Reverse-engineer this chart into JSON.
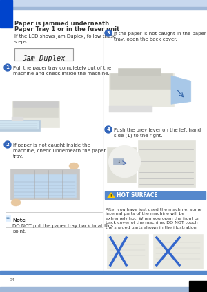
{
  "page_bg": "#ffffff",
  "header_bar_light": "#c8d8ee",
  "header_bar_dark": "#a0b8d8",
  "left_accent_color": "#0044cc",
  "title_line1": "Paper is jammed underneath",
  "title_line2": "Paper Tray 1 or in the fuser unit",
  "title_fontsize": 6.0,
  "intro_text": "If the LCD shows Jam Duplex, follow these\nsteps:",
  "intro_fontsize": 5.0,
  "lcd_text": "Jam Duplex",
  "lcd_fontsize": 7.5,
  "step1_num": "1",
  "step1_text": "Pull the paper tray completely out of the\nmachine and check inside the machine.",
  "step2_num": "2",
  "step2_text": "If paper is not caught inside the\nmachine, check underneath the paper\ntray.",
  "step3_num": "3",
  "step3_text": "If the paper is not caught in the paper\ntray, open the back cover.",
  "step4_num": "4",
  "step4_text": "Push the grey lever on the left hand\nside (1) to the right.",
  "note_title": "Note",
  "note_text": "DO NOT put the paper tray back in at this\npoint.",
  "hot_surface_text": "HOT SURFACE",
  "hot_surface_detail": "After you have just used the machine, some\ninternal parts of the machine will be\nextremely hot. When you open the front or\nback cover of the machine, DO NOT touch\nthe shaded parts shown in the illustration.",
  "step_circle_color": "#3366bb",
  "step_text_color": "#ffffff",
  "hot_bar_color": "#5588cc",
  "hot_bar_text_color": "#ffffff",
  "body_text_color": "#333333",
  "note_line_color": "#bbbbbb",
  "page_num": "94",
  "bottom_stripe_color": "#5588cc",
  "footer_bar_color": "#a0b8d8",
  "small_text_color": "#666666",
  "step_fontsize": 5.0,
  "hot_text_fontsize": 5.5,
  "note_fontsize": 5.0,
  "divider_color": "#aaaaaa",
  "mono_color": "#444444"
}
